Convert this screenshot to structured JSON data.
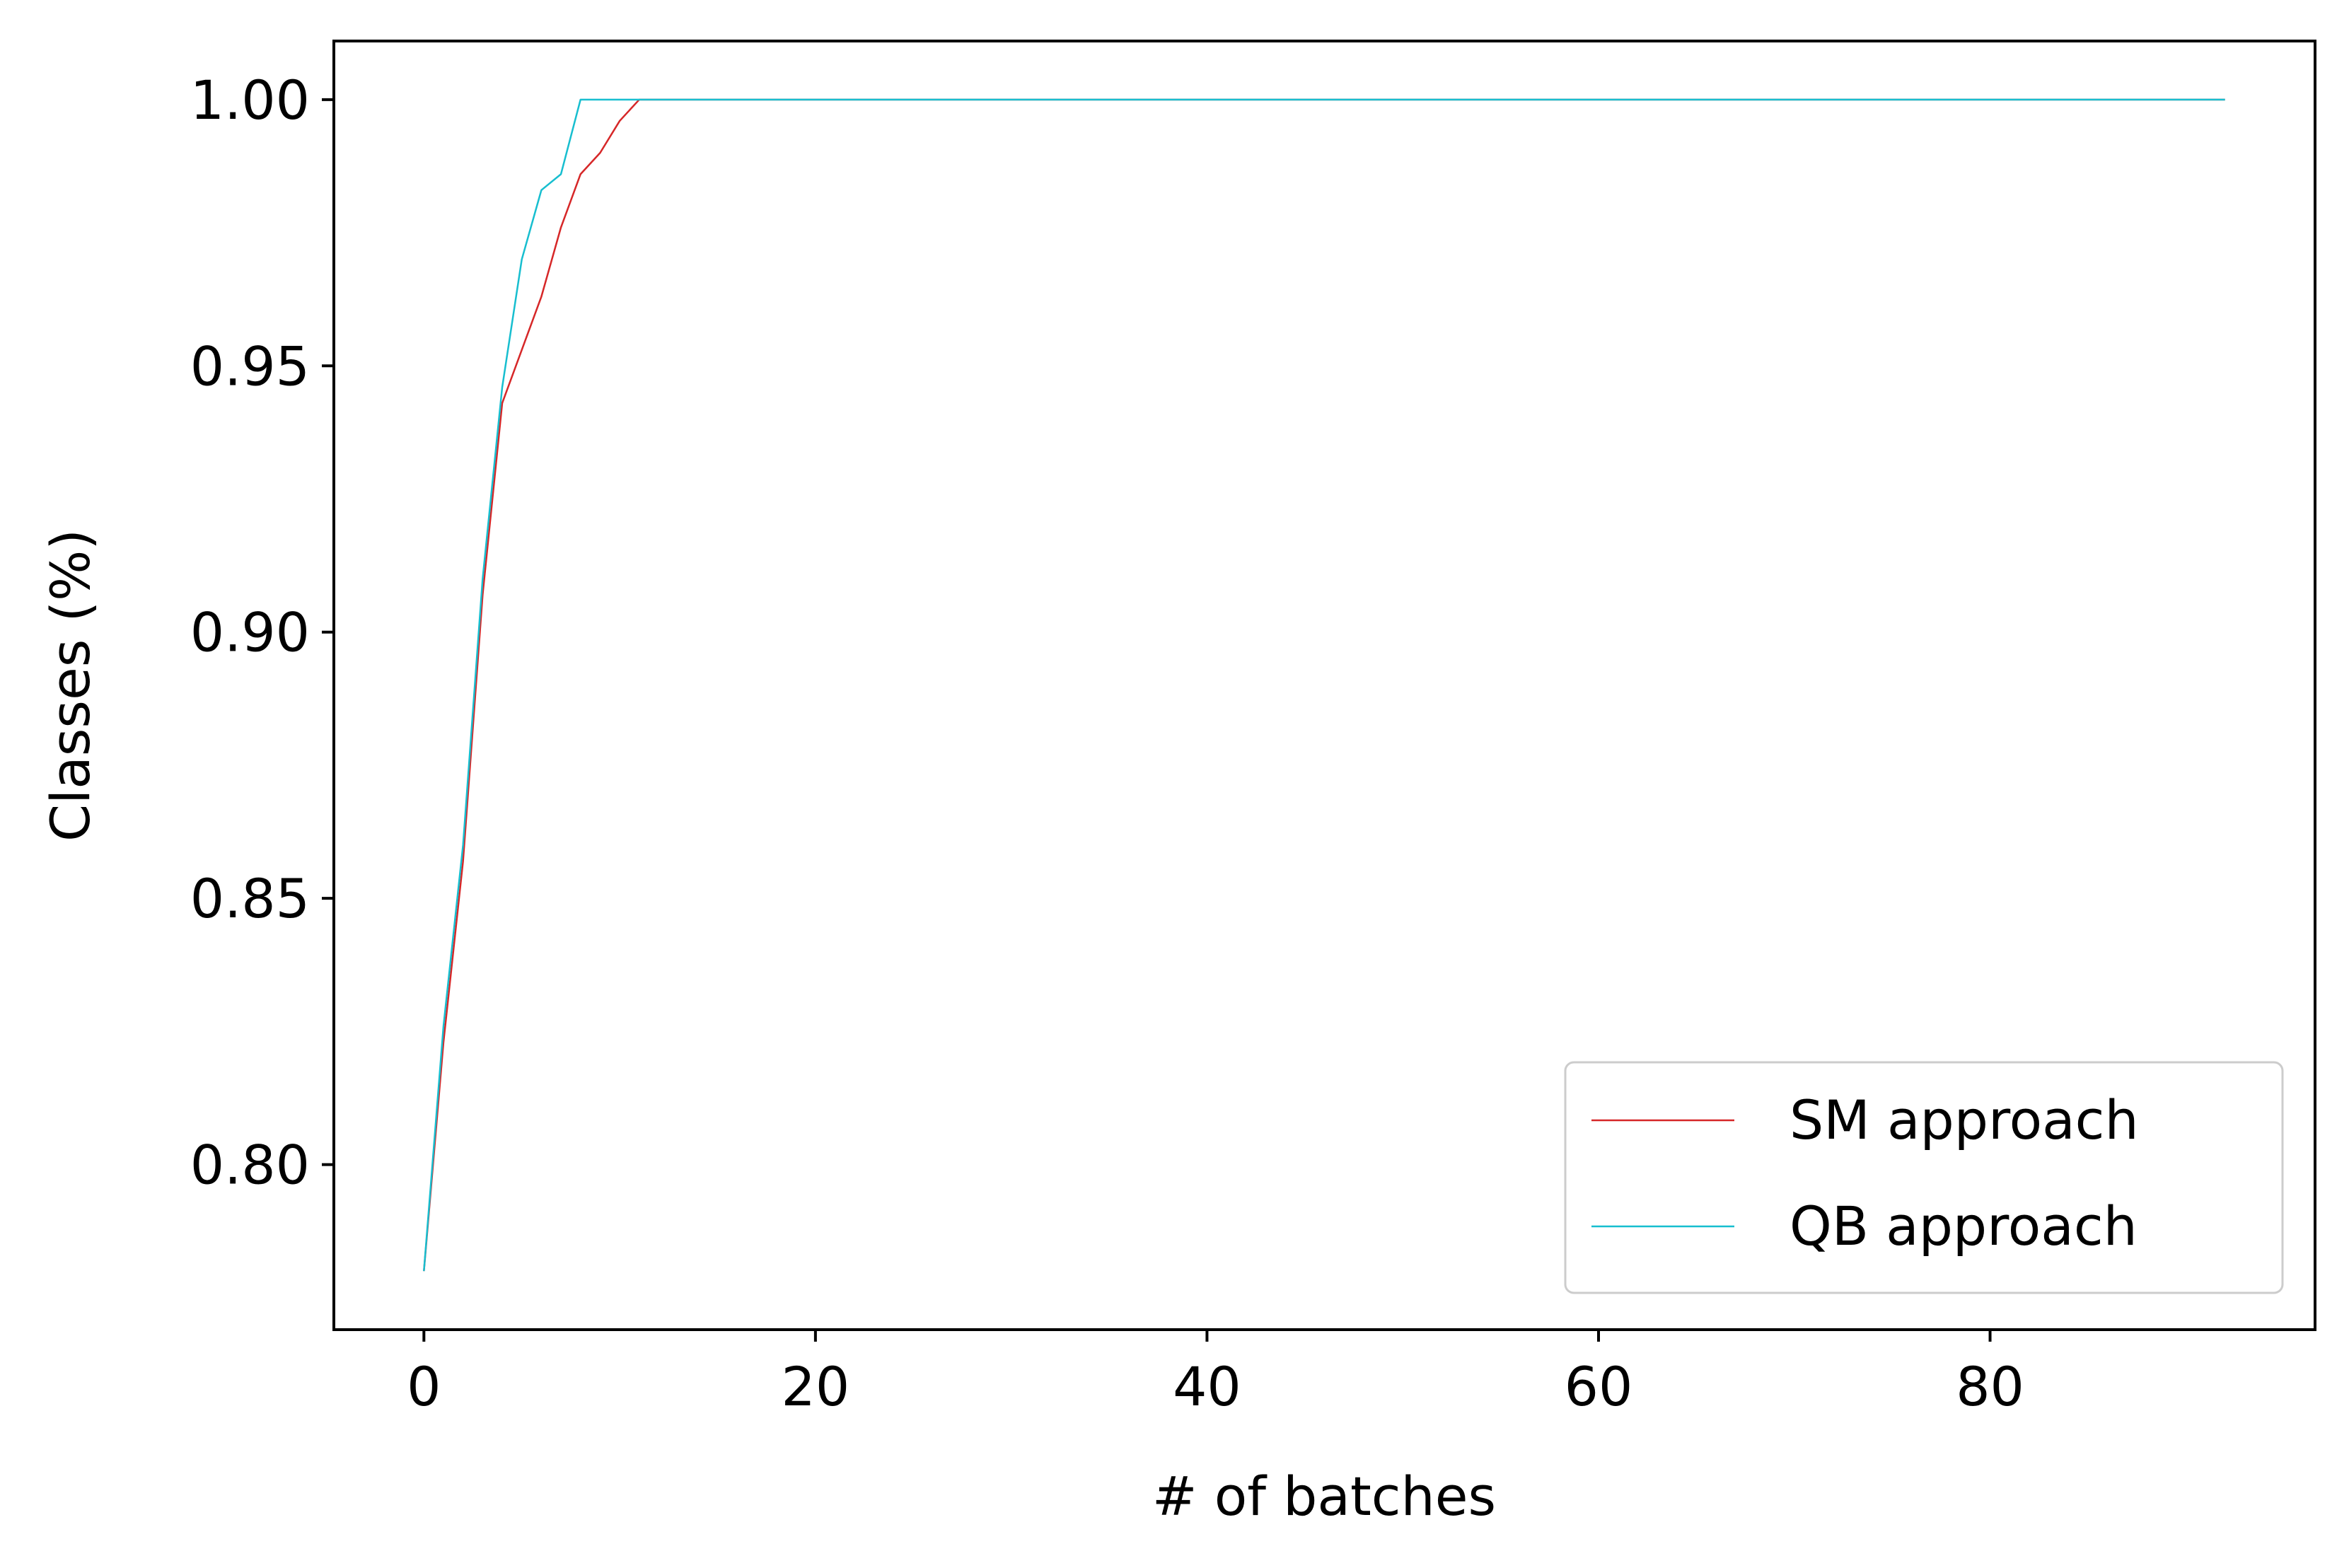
{
  "chart_data": {
    "type": "line",
    "title": "",
    "xlabel": "# of batches",
    "ylabel": "Classes (%)",
    "xlim": [
      -4.6,
      96.6
    ],
    "ylim": [
      0.769,
      1.011
    ],
    "xticks": [
      0,
      20,
      40,
      60,
      80
    ],
    "xtick_labels": [
      "0",
      "20",
      "40",
      "60",
      "80"
    ],
    "yticks": [
      0.8,
      0.85,
      0.9,
      0.95,
      1.0
    ],
    "ytick_labels": [
      "0.80",
      "0.85",
      "0.90",
      "0.95",
      "1.00"
    ],
    "grid": false,
    "legend_position": "lower-right",
    "series": [
      {
        "name": "SM approach",
        "color": "#d62728",
        "x": [
          0,
          1,
          2,
          3,
          4,
          5,
          6,
          7,
          8,
          9,
          10,
          11,
          92
        ],
        "y": [
          0.78,
          0.823,
          0.857,
          0.907,
          0.943,
          0.953,
          0.963,
          0.976,
          0.986,
          0.99,
          0.996,
          1.0,
          1.0
        ]
      },
      {
        "name": "QB approach",
        "color": "#17becf",
        "x": [
          0,
          1,
          2,
          3,
          4,
          5,
          6,
          7,
          8,
          92
        ],
        "y": [
          0.78,
          0.826,
          0.86,
          0.91,
          0.946,
          0.97,
          0.983,
          0.986,
          1.0,
          1.0
        ]
      }
    ]
  }
}
